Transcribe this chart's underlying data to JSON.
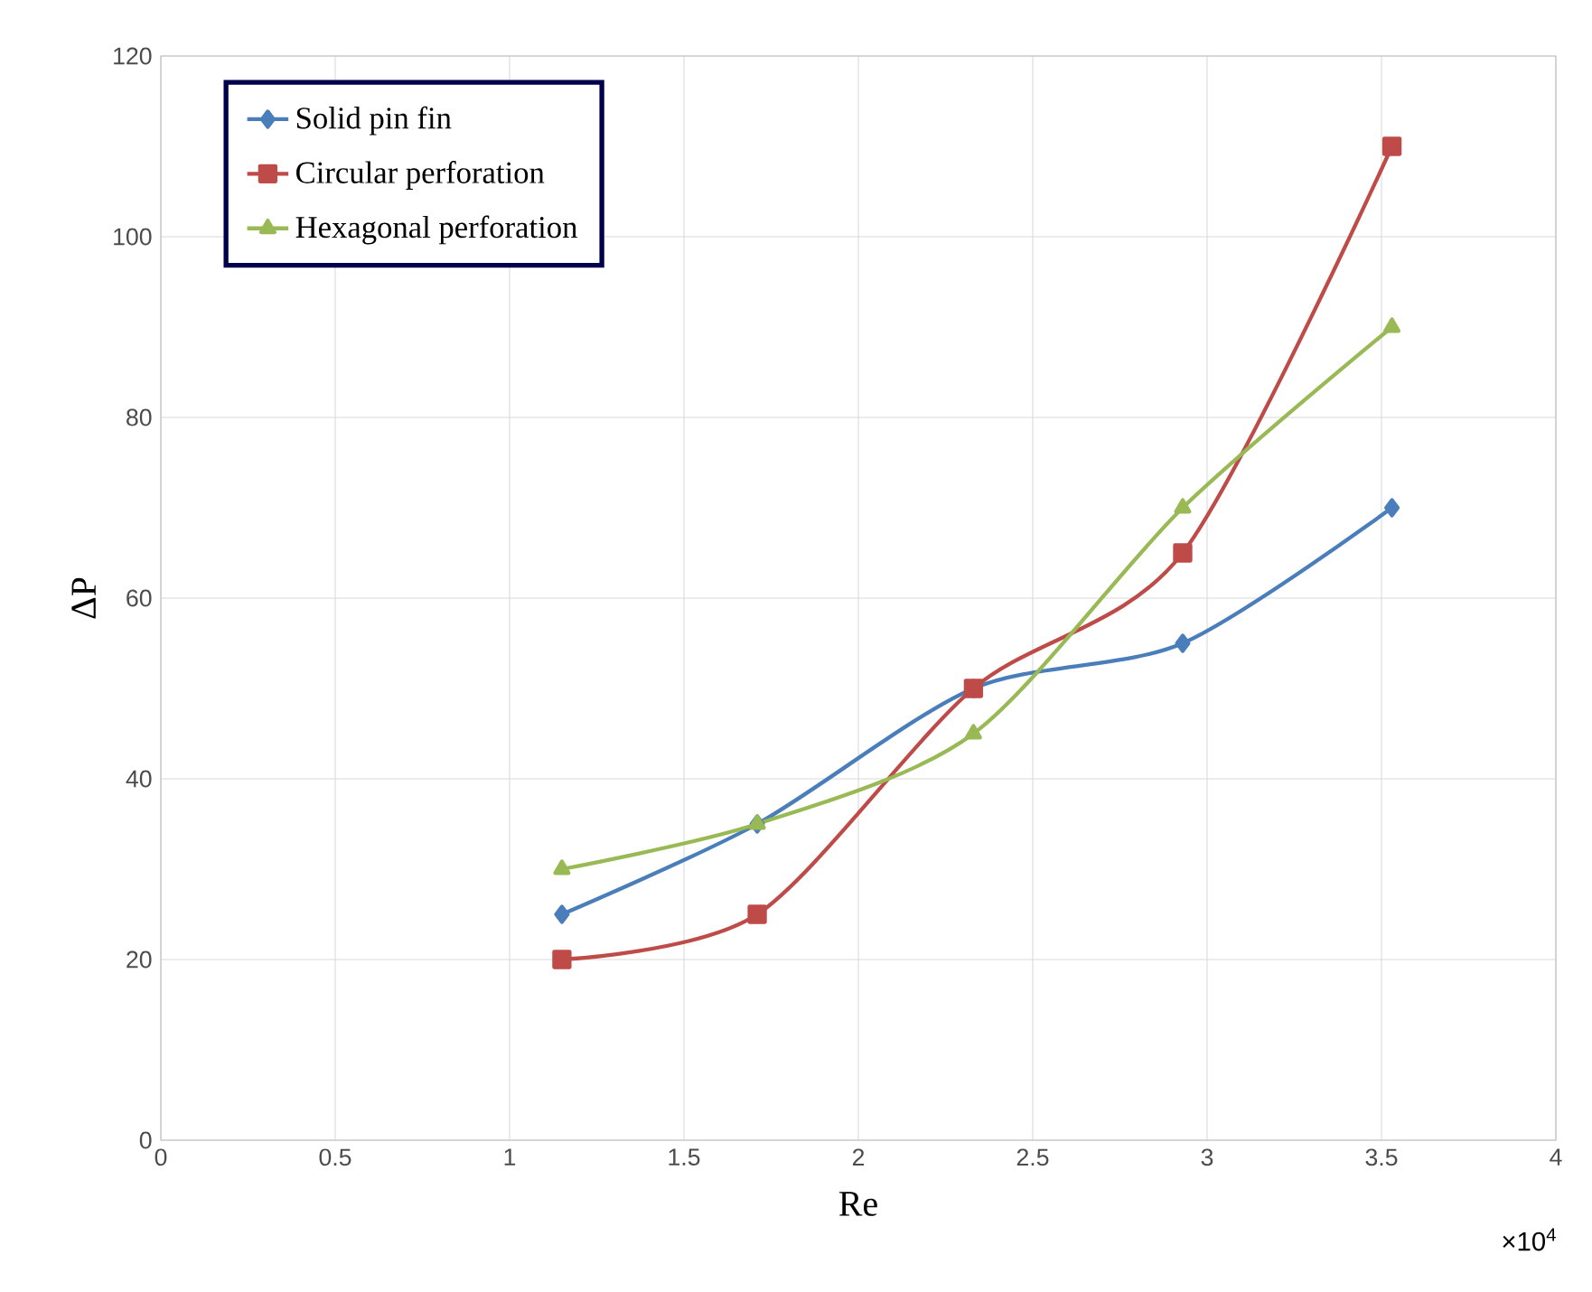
{
  "chart_data": {
    "type": "line",
    "xlabel": "Re",
    "ylabel": "ΔP",
    "x": [
      1.15,
      1.71,
      2.33,
      2.93,
      3.53
    ],
    "series": [
      {
        "name": "Solid pin fin",
        "color": "#4a7ebb",
        "marker": "diamond",
        "values": [
          25,
          35,
          50,
          55,
          70
        ]
      },
      {
        "name": "Circular perforation",
        "color": "#be4b48",
        "marker": "square",
        "values": [
          20,
          25,
          50,
          65,
          110
        ]
      },
      {
        "name": "Hexagonal perforation",
        "color": "#98b954",
        "marker": "triangle",
        "values": [
          30,
          35,
          45,
          70,
          90
        ]
      }
    ],
    "xlim": [
      0,
      4
    ],
    "xticks": [
      0,
      0.5,
      1,
      1.5,
      2,
      2.5,
      3,
      3.5,
      4
    ],
    "ylim": [
      0,
      120
    ],
    "yticks": [
      0,
      20,
      40,
      60,
      80,
      100,
      120
    ],
    "grid": true,
    "legend": "top left",
    "line_style": "solid",
    "annotations": [
      "×10$^{4}$"
    ]
  }
}
